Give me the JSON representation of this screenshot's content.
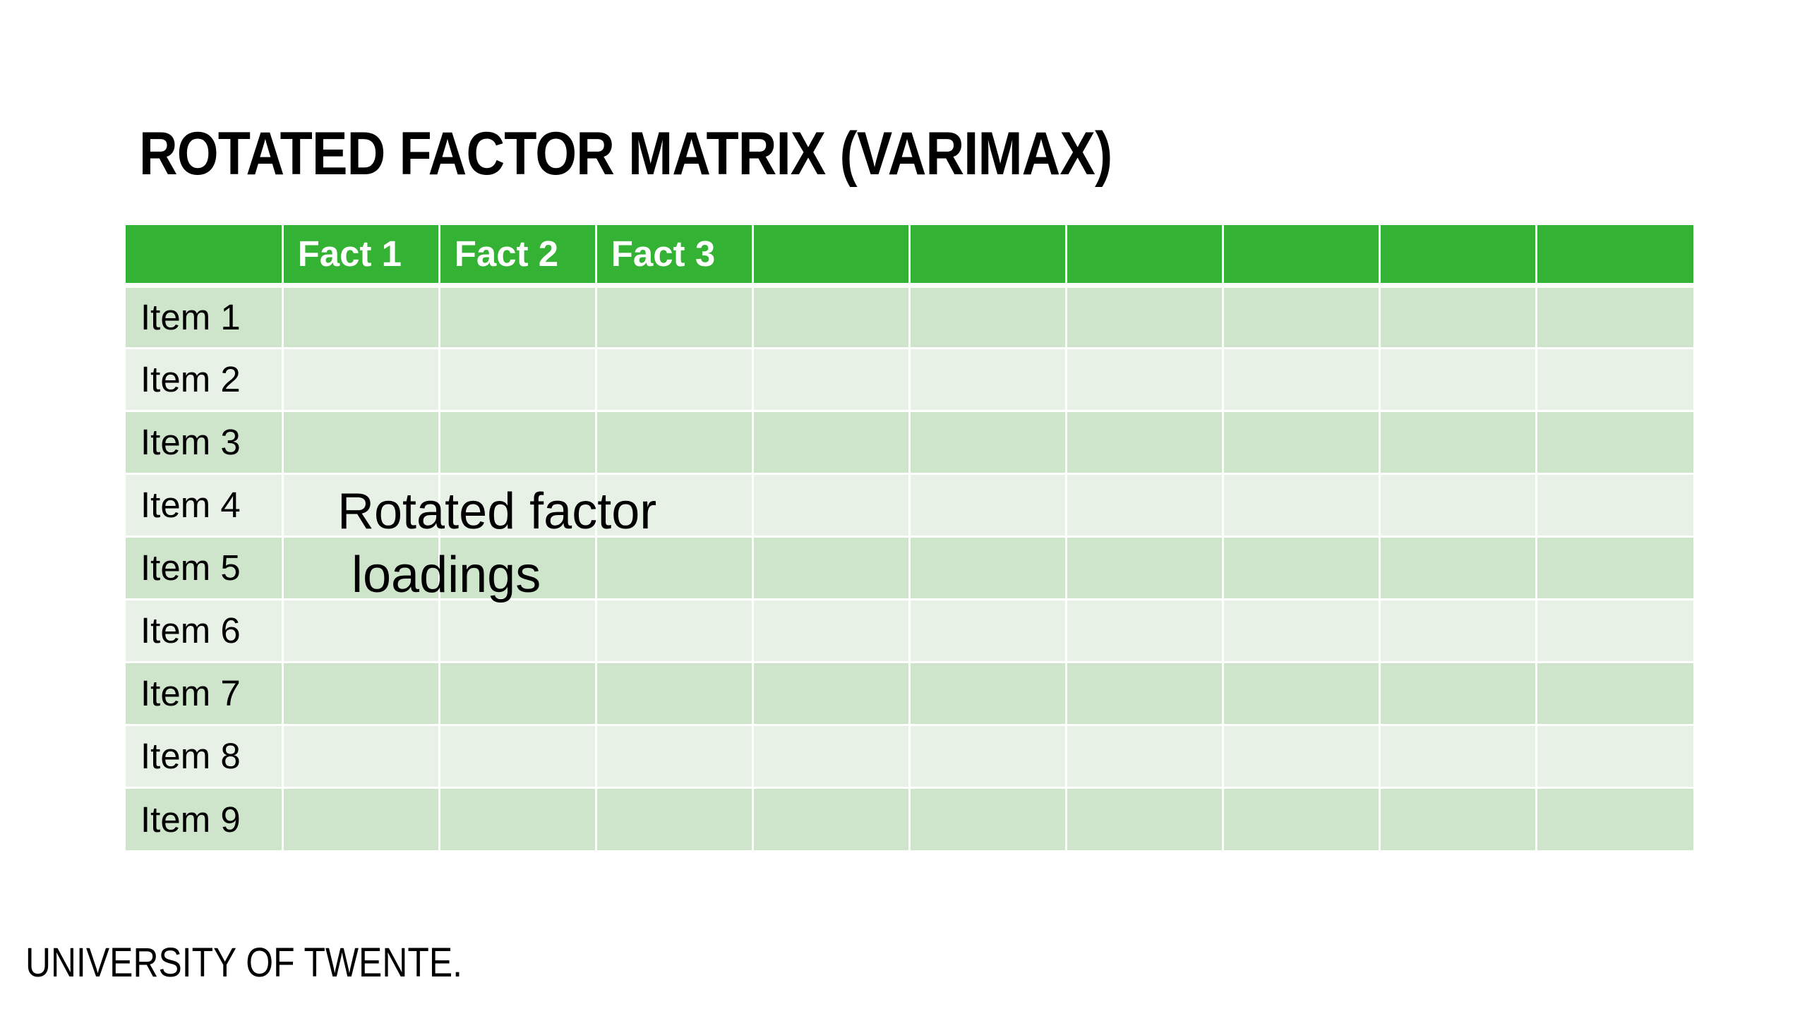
{
  "slide": {
    "title": "ROTATED FACTOR MATRIX (VARIMAX)",
    "overlay_text": "Rotated factor\n loadings",
    "footer_logo": "UNIVERSITY OF TWENTE."
  },
  "table": {
    "columns": [
      "",
      "Fact 1",
      "Fact 2",
      "Fact 3",
      "",
      "",
      "",
      "",
      "",
      ""
    ],
    "rows": [
      "Item 1",
      "Item 2",
      "Item 3",
      "Item 4",
      "Item 5",
      "Item 6",
      "Item 7",
      "Item 8",
      "Item 9"
    ]
  },
  "colors": {
    "header_green": "#34b233",
    "row_dark": "#cee4cb",
    "row_light": "#e7f1e5"
  }
}
